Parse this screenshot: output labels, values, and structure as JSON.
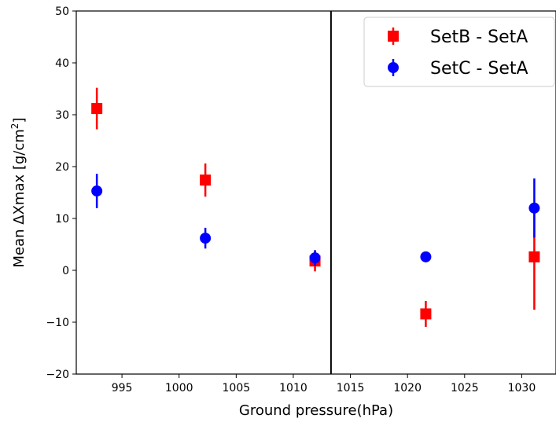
{
  "chart_data": {
    "type": "scatter",
    "title": "",
    "xlabel": "Ground pressure(hPa)",
    "ylabel_prefix": "Mean ΔXmax  [g/cm",
    "ylabel_sup": "2",
    "ylabel_suffix": "]",
    "xlim": [
      991,
      1033
    ],
    "ylim": [
      -20,
      50
    ],
    "xticks": [
      995,
      1000,
      1005,
      1010,
      1015,
      1020,
      1025,
      1030
    ],
    "yticks": [
      -20,
      -10,
      0,
      10,
      20,
      30,
      40,
      50
    ],
    "grid": false,
    "legend_position": "top-right",
    "vertical_line_x": 1013.3,
    "series": [
      {
        "name": "SetB - SetA",
        "color": "#ff0000",
        "marker": "square",
        "points": [
          {
            "x": 992.8,
            "y": 31.2,
            "err": 4.0
          },
          {
            "x": 1002.3,
            "y": 17.4,
            "err": 3.2
          },
          {
            "x": 1011.9,
            "y": 1.8,
            "err": 2.0
          },
          {
            "x": 1021.6,
            "y": -8.4,
            "err": 2.5
          },
          {
            "x": 1031.1,
            "y": 2.6,
            "err": 10.2
          }
        ]
      },
      {
        "name": "SetC - SetA",
        "color": "#0000ff",
        "marker": "circle",
        "points": [
          {
            "x": 992.8,
            "y": 15.3,
            "err": 3.3
          },
          {
            "x": 1002.3,
            "y": 6.2,
            "err": 2.0
          },
          {
            "x": 1011.9,
            "y": 2.4,
            "err": 1.5
          },
          {
            "x": 1021.6,
            "y": 2.6,
            "err": 1.0
          },
          {
            "x": 1031.1,
            "y": 12.0,
            "err": 5.7
          }
        ]
      }
    ]
  }
}
